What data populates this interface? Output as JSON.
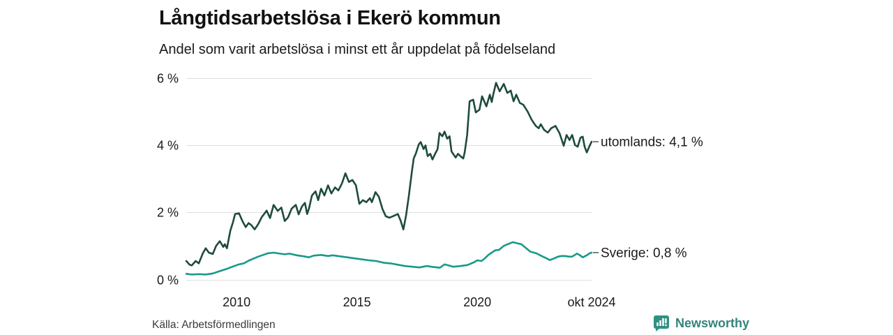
{
  "header": {
    "title": "Långtidsarbetslösa i Ekerö kommun",
    "subtitle": "Andel som varit arbetslösa i minst ett år uppdelat på födelseland"
  },
  "footer": {
    "source": "Källa: Arbetsförmedlingen",
    "logo_text": "Newsworthy",
    "logo_icon": "bar-chart-speech-bubble-icon",
    "logo_color": "#2f9183",
    "logo_text_color": "#35837c"
  },
  "colors": {
    "background": "#ffffff",
    "gridline": "#dedede",
    "tick_text": "#1a1a1a",
    "label_text": "#1a1a1a",
    "connector": "#555555"
  },
  "chart_data": {
    "type": "line",
    "title": "Långtidsarbetslösa i Ekerö kommun",
    "subtitle": "Andel som varit arbetslösa i minst ett år uppdelat på födelseland",
    "xlabel": "",
    "ylabel": "",
    "grid": "horizontal",
    "legend_position": "right-end-labels",
    "xlim": [
      2007.91,
      2024.75
    ],
    "ylim": [
      0,
      6
    ],
    "x_ticks": [
      {
        "v": 2010,
        "label": "2010"
      },
      {
        "v": 2015,
        "label": "2015"
      },
      {
        "v": 2020,
        "label": "2020"
      },
      {
        "v": 2024.75,
        "label": "okt 2024"
      }
    ],
    "y_ticks": [
      {
        "v": 0,
        "label": "0 %"
      },
      {
        "v": 2,
        "label": "2 %"
      },
      {
        "v": 4,
        "label": "4 %"
      },
      {
        "v": 6,
        "label": "6 %"
      }
    ],
    "series": [
      {
        "name": "utomlands",
        "label": "utomlands: 4,1 %",
        "end_value": "4,1 %",
        "color": "#1e4b3c",
        "points": [
          [
            2007.91,
            0.55
          ],
          [
            2008.05,
            0.44
          ],
          [
            2008.14,
            0.42
          ],
          [
            2008.3,
            0.55
          ],
          [
            2008.43,
            0.48
          ],
          [
            2008.6,
            0.78
          ],
          [
            2008.72,
            0.93
          ],
          [
            2008.85,
            0.8
          ],
          [
            2009.01,
            0.76
          ],
          [
            2009.15,
            1.0
          ],
          [
            2009.3,
            1.14
          ],
          [
            2009.45,
            0.97
          ],
          [
            2009.51,
            1.05
          ],
          [
            2009.6,
            0.93
          ],
          [
            2009.74,
            1.45
          ],
          [
            2009.85,
            1.7
          ],
          [
            2009.94,
            1.95
          ],
          [
            2010.1,
            1.97
          ],
          [
            2010.25,
            1.73
          ],
          [
            2010.38,
            1.56
          ],
          [
            2010.5,
            1.68
          ],
          [
            2010.61,
            1.62
          ],
          [
            2010.75,
            1.49
          ],
          [
            2010.9,
            1.65
          ],
          [
            2011.04,
            1.85
          ],
          [
            2011.25,
            2.05
          ],
          [
            2011.39,
            1.83
          ],
          [
            2011.54,
            2.22
          ],
          [
            2011.71,
            2.04
          ],
          [
            2011.86,
            2.14
          ],
          [
            2012.0,
            1.74
          ],
          [
            2012.14,
            1.85
          ],
          [
            2012.29,
            2.11
          ],
          [
            2012.46,
            2.22
          ],
          [
            2012.58,
            1.94
          ],
          [
            2012.72,
            2.18
          ],
          [
            2012.84,
            2.28
          ],
          [
            2012.93,
            1.95
          ],
          [
            2013.01,
            2.12
          ],
          [
            2013.13,
            2.5
          ],
          [
            2013.28,
            2.62
          ],
          [
            2013.39,
            2.36
          ],
          [
            2013.51,
            2.7
          ],
          [
            2013.65,
            2.5
          ],
          [
            2013.8,
            2.8
          ],
          [
            2013.94,
            2.56
          ],
          [
            2014.09,
            2.74
          ],
          [
            2014.23,
            2.65
          ],
          [
            2014.38,
            2.86
          ],
          [
            2014.52,
            3.16
          ],
          [
            2014.67,
            2.9
          ],
          [
            2014.81,
            2.96
          ],
          [
            2014.96,
            2.8
          ],
          [
            2015.1,
            2.25
          ],
          [
            2015.25,
            2.36
          ],
          [
            2015.39,
            2.3
          ],
          [
            2015.54,
            2.42
          ],
          [
            2015.62,
            2.3
          ],
          [
            2015.77,
            2.6
          ],
          [
            2015.91,
            2.46
          ],
          [
            2016.06,
            2.1
          ],
          [
            2016.2,
            1.88
          ],
          [
            2016.35,
            1.84
          ],
          [
            2016.49,
            1.88
          ],
          [
            2016.7,
            1.95
          ],
          [
            2016.81,
            1.76
          ],
          [
            2016.93,
            1.49
          ],
          [
            2017.04,
            1.9
          ],
          [
            2017.16,
            2.5
          ],
          [
            2017.28,
            3.2
          ],
          [
            2017.36,
            3.6
          ],
          [
            2017.45,
            3.75
          ],
          [
            2017.57,
            4.02
          ],
          [
            2017.65,
            4.09
          ],
          [
            2017.77,
            3.88
          ],
          [
            2017.85,
            3.99
          ],
          [
            2017.94,
            3.67
          ],
          [
            2018.05,
            3.74
          ],
          [
            2018.14,
            3.57
          ],
          [
            2018.25,
            3.74
          ],
          [
            2018.35,
            3.88
          ],
          [
            2018.43,
            4.36
          ],
          [
            2018.55,
            4.26
          ],
          [
            2018.64,
            4.4
          ],
          [
            2018.75,
            4.19
          ],
          [
            2018.85,
            4.26
          ],
          [
            2018.93,
            3.81
          ],
          [
            2019.1,
            3.63
          ],
          [
            2019.2,
            3.74
          ],
          [
            2019.3,
            3.67
          ],
          [
            2019.42,
            3.6
          ],
          [
            2019.48,
            3.8
          ],
          [
            2019.58,
            4.3
          ],
          [
            2019.68,
            5.3
          ],
          [
            2019.83,
            5.35
          ],
          [
            2019.94,
            4.97
          ],
          [
            2020.09,
            5.05
          ],
          [
            2020.2,
            5.45
          ],
          [
            2020.38,
            5.15
          ],
          [
            2020.52,
            5.5
          ],
          [
            2020.6,
            5.28
          ],
          [
            2020.67,
            5.52
          ],
          [
            2020.78,
            5.85
          ],
          [
            2020.93,
            5.6
          ],
          [
            2021.1,
            5.82
          ],
          [
            2021.25,
            5.55
          ],
          [
            2021.39,
            5.62
          ],
          [
            2021.51,
            5.3
          ],
          [
            2021.62,
            5.5
          ],
          [
            2021.77,
            5.25
          ],
          [
            2021.91,
            5.2
          ],
          [
            2022.09,
            5.0
          ],
          [
            2022.26,
            4.75
          ],
          [
            2022.43,
            4.57
          ],
          [
            2022.55,
            4.5
          ],
          [
            2022.64,
            4.62
          ],
          [
            2022.78,
            4.45
          ],
          [
            2022.93,
            4.37
          ],
          [
            2023.07,
            4.5
          ],
          [
            2023.25,
            4.57
          ],
          [
            2023.42,
            4.35
          ],
          [
            2023.59,
            3.98
          ],
          [
            2023.71,
            4.3
          ],
          [
            2023.83,
            4.15
          ],
          [
            2023.94,
            4.3
          ],
          [
            2024.06,
            4.0
          ],
          [
            2024.17,
            3.95
          ],
          [
            2024.29,
            4.22
          ],
          [
            2024.38,
            4.25
          ],
          [
            2024.46,
            3.95
          ],
          [
            2024.55,
            3.78
          ],
          [
            2024.67,
            3.98
          ],
          [
            2024.75,
            4.1
          ]
        ]
      },
      {
        "name": "Sverige",
        "label": "Sverige: 0,8 %",
        "end_value": "0,8 %",
        "color": "#179a88",
        "points": [
          [
            2007.91,
            0.17
          ],
          [
            2008.14,
            0.15
          ],
          [
            2008.43,
            0.16
          ],
          [
            2008.72,
            0.15
          ],
          [
            2009.01,
            0.18
          ],
          [
            2009.3,
            0.25
          ],
          [
            2009.6,
            0.32
          ],
          [
            2009.9,
            0.4
          ],
          [
            2010.1,
            0.45
          ],
          [
            2010.3,
            0.48
          ],
          [
            2010.5,
            0.56
          ],
          [
            2010.7,
            0.62
          ],
          [
            2010.9,
            0.68
          ],
          [
            2011.1,
            0.73
          ],
          [
            2011.3,
            0.78
          ],
          [
            2011.54,
            0.8
          ],
          [
            2011.8,
            0.77
          ],
          [
            2012.0,
            0.75
          ],
          [
            2012.2,
            0.77
          ],
          [
            2012.5,
            0.72
          ],
          [
            2012.8,
            0.69
          ],
          [
            2013.0,
            0.66
          ],
          [
            2013.2,
            0.71
          ],
          [
            2013.5,
            0.73
          ],
          [
            2013.8,
            0.7
          ],
          [
            2014.0,
            0.72
          ],
          [
            2014.3,
            0.69
          ],
          [
            2014.6,
            0.66
          ],
          [
            2014.9,
            0.63
          ],
          [
            2015.2,
            0.6
          ],
          [
            2015.5,
            0.57
          ],
          [
            2015.8,
            0.55
          ],
          [
            2016.1,
            0.5
          ],
          [
            2016.4,
            0.48
          ],
          [
            2016.7,
            0.44
          ],
          [
            2017.0,
            0.4
          ],
          [
            2017.3,
            0.38
          ],
          [
            2017.6,
            0.36
          ],
          [
            2017.9,
            0.4
          ],
          [
            2018.2,
            0.37
          ],
          [
            2018.45,
            0.35
          ],
          [
            2018.64,
            0.45
          ],
          [
            2018.8,
            0.42
          ],
          [
            2019.01,
            0.38
          ],
          [
            2019.3,
            0.4
          ],
          [
            2019.59,
            0.43
          ],
          [
            2019.88,
            0.52
          ],
          [
            2020.0,
            0.57
          ],
          [
            2020.17,
            0.55
          ],
          [
            2020.3,
            0.62
          ],
          [
            2020.46,
            0.73
          ],
          [
            2020.6,
            0.8
          ],
          [
            2020.75,
            0.87
          ],
          [
            2020.9,
            0.88
          ],
          [
            2021.1,
            1.0
          ],
          [
            2021.3,
            1.06
          ],
          [
            2021.48,
            1.11
          ],
          [
            2021.65,
            1.08
          ],
          [
            2021.83,
            1.05
          ],
          [
            2022.0,
            0.95
          ],
          [
            2022.2,
            0.83
          ],
          [
            2022.45,
            0.78
          ],
          [
            2022.7,
            0.69
          ],
          [
            2022.85,
            0.64
          ],
          [
            2023.01,
            0.58
          ],
          [
            2023.2,
            0.63
          ],
          [
            2023.36,
            0.68
          ],
          [
            2023.5,
            0.7
          ],
          [
            2023.65,
            0.7
          ],
          [
            2023.8,
            0.68
          ],
          [
            2023.94,
            0.68
          ],
          [
            2024.14,
            0.77
          ],
          [
            2024.25,
            0.73
          ],
          [
            2024.38,
            0.66
          ],
          [
            2024.55,
            0.72
          ],
          [
            2024.67,
            0.78
          ],
          [
            2024.75,
            0.8
          ]
        ]
      }
    ]
  }
}
